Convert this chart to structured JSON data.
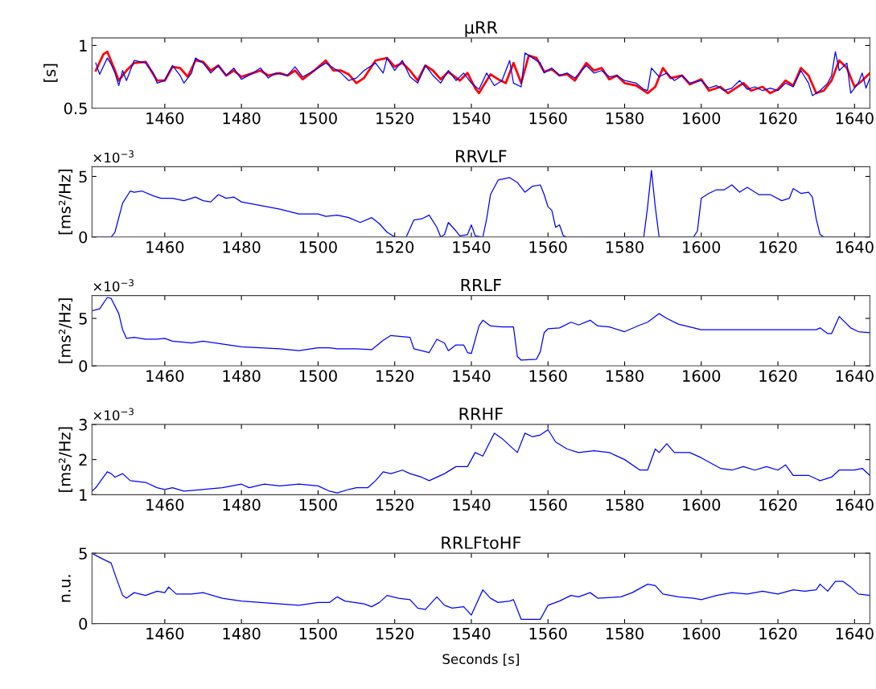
{
  "chart_data": [
    {
      "type": "line",
      "title": "μRR",
      "ylabel": "[s]",
      "xlim": [
        1441,
        1644
      ],
      "xticks": [
        1460,
        1480,
        1500,
        1520,
        1540,
        1560,
        1580,
        1600,
        1620,
        1640
      ],
      "ylim": [
        0.5,
        1.06
      ],
      "yticks": [
        0.5,
        1
      ],
      "grid": false,
      "series": [
        {
          "color": "#ff0000",
          "x": [
            1442,
            1444,
            1445,
            1447,
            1448,
            1450,
            1452,
            1455,
            1458,
            1460,
            1462,
            1464,
            1466,
            1468,
            1470,
            1472,
            1474,
            1476,
            1478,
            1480,
            1483,
            1485,
            1487,
            1490,
            1492,
            1494,
            1496,
            1499,
            1502,
            1504,
            1506,
            1508,
            1510,
            1512,
            1515,
            1518,
            1520,
            1522,
            1524,
            1526,
            1528,
            1530,
            1532,
            1534,
            1537,
            1539,
            1541,
            1542,
            1545,
            1547,
            1549,
            1551,
            1553,
            1555,
            1557,
            1559,
            1561,
            1563,
            1565,
            1567,
            1570,
            1572,
            1574,
            1576,
            1578,
            1580,
            1583,
            1586,
            1588,
            1590,
            1592,
            1595,
            1597,
            1600,
            1602,
            1605,
            1607,
            1609,
            1611,
            1613,
            1616,
            1618,
            1620,
            1622,
            1624,
            1626,
            1628,
            1630,
            1632,
            1634,
            1636,
            1638,
            1640,
            1642,
            1644
          ],
          "values": [
            0.8,
            0.93,
            0.95,
            0.8,
            0.72,
            0.8,
            0.86,
            0.87,
            0.72,
            0.72,
            0.83,
            0.82,
            0.75,
            0.88,
            0.87,
            0.8,
            0.84,
            0.76,
            0.8,
            0.75,
            0.78,
            0.8,
            0.76,
            0.78,
            0.76,
            0.8,
            0.73,
            0.8,
            0.88,
            0.8,
            0.8,
            0.77,
            0.7,
            0.74,
            0.88,
            0.9,
            0.83,
            0.86,
            0.8,
            0.72,
            0.84,
            0.8,
            0.73,
            0.79,
            0.72,
            0.78,
            0.66,
            0.62,
            0.77,
            0.73,
            0.7,
            0.86,
            0.7,
            0.92,
            0.9,
            0.79,
            0.81,
            0.76,
            0.77,
            0.72,
            0.86,
            0.8,
            0.82,
            0.73,
            0.76,
            0.7,
            0.68,
            0.62,
            0.67,
            0.82,
            0.74,
            0.76,
            0.69,
            0.73,
            0.64,
            0.67,
            0.62,
            0.66,
            0.7,
            0.64,
            0.67,
            0.62,
            0.65,
            0.72,
            0.68,
            0.82,
            0.76,
            0.62,
            0.64,
            0.72,
            0.88,
            0.82,
            0.67,
            0.72,
            0.78
          ]
        },
        {
          "color": "#0000ff",
          "x": [
            1442,
            1443,
            1445,
            1446,
            1447,
            1448,
            1449,
            1450,
            1452,
            1455,
            1457,
            1458,
            1460,
            1462,
            1464,
            1465,
            1467,
            1468,
            1470,
            1472,
            1474,
            1476,
            1478,
            1480,
            1483,
            1485,
            1487,
            1489,
            1492,
            1494,
            1496,
            1499,
            1502,
            1504,
            1506,
            1508,
            1510,
            1512,
            1515,
            1517,
            1518,
            1520,
            1522,
            1524,
            1526,
            1528,
            1530,
            1532,
            1534,
            1536,
            1538,
            1540,
            1542,
            1544,
            1546,
            1548,
            1550,
            1551,
            1553,
            1554,
            1556,
            1558,
            1559,
            1561,
            1563,
            1565,
            1567,
            1570,
            1572,
            1574,
            1576,
            1578,
            1580,
            1583,
            1585,
            1586,
            1587,
            1589,
            1591,
            1593,
            1595,
            1597,
            1600,
            1602,
            1604,
            1606,
            1608,
            1610,
            1612,
            1614,
            1616,
            1618,
            1620,
            1622,
            1624,
            1626,
            1628,
            1629,
            1631,
            1633,
            1634,
            1635,
            1636,
            1638,
            1639,
            1641,
            1642,
            1643,
            1644
          ],
          "values": [
            0.86,
            0.77,
            0.9,
            0.85,
            0.78,
            0.68,
            0.8,
            0.72,
            0.88,
            0.86,
            0.78,
            0.7,
            0.72,
            0.84,
            0.76,
            0.7,
            0.78,
            0.9,
            0.86,
            0.78,
            0.84,
            0.76,
            0.82,
            0.73,
            0.78,
            0.82,
            0.74,
            0.78,
            0.76,
            0.83,
            0.75,
            0.8,
            0.86,
            0.82,
            0.78,
            0.72,
            0.74,
            0.8,
            0.86,
            0.78,
            0.9,
            0.8,
            0.88,
            0.75,
            0.7,
            0.84,
            0.76,
            0.7,
            0.8,
            0.72,
            0.78,
            0.7,
            0.65,
            0.78,
            0.68,
            0.72,
            0.88,
            0.7,
            0.67,
            0.94,
            0.9,
            0.86,
            0.78,
            0.82,
            0.76,
            0.78,
            0.74,
            0.84,
            0.78,
            0.8,
            0.75,
            0.76,
            0.72,
            0.7,
            0.65,
            0.64,
            0.82,
            0.75,
            0.78,
            0.72,
            0.76,
            0.7,
            0.72,
            0.66,
            0.68,
            0.64,
            0.66,
            0.72,
            0.65,
            0.67,
            0.64,
            0.66,
            0.64,
            0.7,
            0.67,
            0.8,
            0.7,
            0.6,
            0.64,
            0.7,
            0.76,
            0.95,
            0.8,
            0.86,
            0.62,
            0.7,
            0.78,
            0.66,
            0.74
          ]
        }
      ]
    },
    {
      "type": "line",
      "title": "RRVLF",
      "ylabel": "[ms²/Hz]",
      "annotations": [
        "×10$^{−3}$"
      ],
      "xlim": [
        1441,
        1644
      ],
      "xticks": [
        1460,
        1480,
        1500,
        1520,
        1540,
        1560,
        1580,
        1600,
        1620,
        1640
      ],
      "ylim": [
        0,
        5.8
      ],
      "yticks": [
        0,
        5
      ],
      "grid": false,
      "series": [
        {
          "color": "#0000ff",
          "x": [
            1441,
            1446,
            1447,
            1449,
            1451,
            1452,
            1454,
            1457,
            1459,
            1462,
            1465,
            1468,
            1470,
            1472,
            1474,
            1476,
            1478,
            1480,
            1485,
            1490,
            1495,
            1500,
            1502,
            1505,
            1508,
            1511,
            1514,
            1516,
            1518,
            1520,
            1523,
            1525,
            1527,
            1529,
            1531,
            1532,
            1533,
            1534,
            1536,
            1537,
            1539,
            1540,
            1541,
            1543,
            1544,
            1545,
            1547,
            1550,
            1552,
            1554,
            1556,
            1558,
            1559,
            1560,
            1561,
            1562,
            1563,
            1564,
            1565,
            1585,
            1586,
            1587,
            1588,
            1589,
            1598,
            1599,
            1600,
            1602,
            1604,
            1606,
            1608,
            1610,
            1612,
            1615,
            1618,
            1621,
            1623,
            1624,
            1626,
            1628,
            1629,
            1630,
            1631,
            1632,
            1644
          ],
          "values": [
            0,
            0,
            0.4,
            2.8,
            3.8,
            3.7,
            3.8,
            3.4,
            3.2,
            3.2,
            3.0,
            3.3,
            3.0,
            2.9,
            3.5,
            3.2,
            3.3,
            2.9,
            2.6,
            2.3,
            1.9,
            1.9,
            1.7,
            1.8,
            1.6,
            1.2,
            1.6,
            1.1,
            0.4,
            0,
            0,
            1.4,
            1.5,
            1.8,
            0.8,
            0,
            0.2,
            1.2,
            0.5,
            0.1,
            0.2,
            1.0,
            0.1,
            0,
            1.5,
            3.5,
            4.7,
            4.9,
            4.5,
            3.7,
            4.2,
            4.3,
            3.5,
            2.5,
            2.2,
            0.8,
            1.0,
            0.1,
            0,
            0,
            2.5,
            5.5,
            2.5,
            0,
            0,
            0.5,
            3.2,
            3.6,
            3.9,
            3.9,
            4.3,
            3.7,
            4.1,
            3.5,
            3.5,
            3.0,
            3.2,
            4.0,
            3.6,
            3.7,
            3.3,
            1.5,
            0.2,
            0,
            0
          ]
        }
      ]
    },
    {
      "type": "line",
      "title": "RRLF",
      "ylabel": "[ms²/Hz]",
      "annotations": [
        "×10$^{−3}$"
      ],
      "xlim": [
        1441,
        1644
      ],
      "xticks": [
        1460,
        1480,
        1500,
        1520,
        1540,
        1560,
        1580,
        1600,
        1620,
        1640
      ],
      "ylim": [
        0,
        7.4
      ],
      "yticks": [
        0,
        5
      ],
      "grid": false,
      "series": [
        {
          "color": "#0000ff",
          "x": [
            1441,
            1443,
            1445,
            1446,
            1448,
            1449,
            1450,
            1452,
            1455,
            1458,
            1460,
            1462,
            1465,
            1467,
            1470,
            1475,
            1480,
            1485,
            1490,
            1495,
            1500,
            1503,
            1505,
            1510,
            1514,
            1517,
            1519,
            1524,
            1525,
            1527,
            1529,
            1531,
            1533,
            1534,
            1536,
            1538,
            1539,
            1540,
            1542,
            1543,
            1545,
            1548,
            1551,
            1552,
            1553,
            1557,
            1558,
            1559,
            1560,
            1563,
            1566,
            1568,
            1571,
            1573,
            1576,
            1580,
            1584,
            1586,
            1589,
            1591,
            1594,
            1597,
            1600,
            1630,
            1631,
            1633,
            1634,
            1636,
            1637,
            1639,
            1641,
            1644
          ],
          "values": [
            5.8,
            6.0,
            7.2,
            7.1,
            5.5,
            3.8,
            2.9,
            3.0,
            2.8,
            2.8,
            2.9,
            2.6,
            2.5,
            2.4,
            2.6,
            2.3,
            2.0,
            1.9,
            1.8,
            1.6,
            1.9,
            1.9,
            1.8,
            1.8,
            1.7,
            2.7,
            3.2,
            3.0,
            1.8,
            1.6,
            1.4,
            2.8,
            2.4,
            1.6,
            2.2,
            2.2,
            1.4,
            1.3,
            4.2,
            4.8,
            4.2,
            4.1,
            4.1,
            1.0,
            0.6,
            0.7,
            1.5,
            3.5,
            3.9,
            4.0,
            4.6,
            4.3,
            4.8,
            4.2,
            4.1,
            3.6,
            4.3,
            4.6,
            5.5,
            5.0,
            4.4,
            4.1,
            3.8,
            3.8,
            4.0,
            3.4,
            3.4,
            5.2,
            4.8,
            4.0,
            3.6,
            3.5
          ]
        }
      ]
    },
    {
      "type": "line",
      "title": "RRHF",
      "ylabel": "[ms²/Hz]",
      "annotations": [
        "×10$^{−3}$"
      ],
      "xlim": [
        1441,
        1644
      ],
      "xticks": [
        1460,
        1480,
        1500,
        1520,
        1540,
        1560,
        1580,
        1600,
        1620,
        1640
      ],
      "ylim": [
        1,
        3
      ],
      "yticks": [
        1,
        2,
        3
      ],
      "grid": false,
      "series": [
        {
          "color": "#0000ff",
          "x": [
            1441,
            1442,
            1444,
            1445,
            1446,
            1447,
            1449,
            1451,
            1455,
            1458,
            1460,
            1462,
            1465,
            1470,
            1475,
            1480,
            1482,
            1486,
            1490,
            1495,
            1500,
            1503,
            1505,
            1508,
            1510,
            1513,
            1515,
            1517,
            1519,
            1522,
            1524,
            1527,
            1529,
            1533,
            1536,
            1539,
            1541,
            1543,
            1546,
            1548,
            1550,
            1552,
            1554,
            1556,
            1558,
            1560,
            1562,
            1565,
            1568,
            1572,
            1576,
            1580,
            1584,
            1586,
            1588,
            1589,
            1591,
            1593,
            1597,
            1600,
            1605,
            1608,
            1611,
            1614,
            1617,
            1620,
            1622,
            1624,
            1628,
            1631,
            1634,
            1636,
            1640,
            1642,
            1644
          ],
          "values": [
            1.1,
            1.2,
            1.5,
            1.65,
            1.6,
            1.5,
            1.6,
            1.4,
            1.35,
            1.2,
            1.15,
            1.2,
            1.1,
            1.15,
            1.2,
            1.3,
            1.2,
            1.3,
            1.25,
            1.3,
            1.25,
            1.1,
            1.05,
            1.15,
            1.2,
            1.2,
            1.4,
            1.65,
            1.6,
            1.7,
            1.6,
            1.5,
            1.4,
            1.6,
            1.8,
            1.8,
            2.2,
            2.1,
            2.75,
            2.6,
            2.4,
            2.2,
            2.75,
            2.65,
            2.7,
            2.85,
            2.5,
            2.3,
            2.2,
            2.25,
            2.2,
            2.0,
            1.7,
            1.7,
            2.3,
            2.2,
            2.45,
            2.2,
            2.2,
            2.05,
            1.75,
            1.7,
            1.8,
            1.7,
            1.8,
            1.7,
            1.85,
            1.55,
            1.55,
            1.4,
            1.5,
            1.7,
            1.7,
            1.75,
            1.55
          ]
        }
      ]
    },
    {
      "type": "line",
      "title": "RRLFtoHF",
      "ylabel": "n.u.",
      "xlabel": "Seconds [s]",
      "xlim": [
        1441,
        1644
      ],
      "xticks": [
        1460,
        1480,
        1500,
        1520,
        1540,
        1560,
        1580,
        1600,
        1620,
        1640
      ],
      "ylim": [
        0,
        5
      ],
      "yticks": [
        0,
        5
      ],
      "grid": false,
      "series": [
        {
          "color": "#0000ff",
          "x": [
            1441,
            1443,
            1446,
            1447,
            1449,
            1450,
            1452,
            1455,
            1458,
            1460,
            1461,
            1463,
            1467,
            1470,
            1475,
            1480,
            1485,
            1490,
            1495,
            1500,
            1503,
            1505,
            1507,
            1512,
            1514,
            1516,
            1518,
            1521,
            1524,
            1526,
            1528,
            1531,
            1533,
            1535,
            1538,
            1540,
            1541,
            1543,
            1545,
            1547,
            1550,
            1551,
            1553,
            1555,
            1558,
            1560,
            1563,
            1566,
            1568,
            1571,
            1573,
            1579,
            1582,
            1586,
            1588,
            1590,
            1594,
            1598,
            1600,
            1604,
            1608,
            1612,
            1616,
            1620,
            1624,
            1627,
            1630,
            1631,
            1633,
            1635,
            1637,
            1639,
            1641,
            1644
          ],
          "values": [
            5.0,
            4.7,
            4.3,
            3.5,
            2.0,
            1.8,
            2.2,
            2.0,
            2.3,
            2.2,
            2.6,
            2.1,
            2.1,
            2.2,
            1.8,
            1.6,
            1.5,
            1.4,
            1.3,
            1.5,
            1.5,
            1.9,
            1.6,
            1.4,
            1.2,
            1.5,
            2.0,
            1.8,
            1.7,
            1.1,
            1.0,
            1.9,
            1.3,
            1.1,
            1.2,
            0.6,
            1.2,
            2.4,
            1.8,
            1.5,
            1.6,
            1.7,
            0.3,
            0.3,
            0.3,
            1.3,
            1.6,
            2.0,
            1.9,
            2.2,
            1.8,
            1.9,
            2.2,
            2.8,
            2.7,
            2.1,
            1.9,
            1.8,
            1.7,
            2.0,
            2.2,
            2.1,
            2.3,
            2.1,
            2.4,
            2.3,
            2.4,
            2.8,
            2.3,
            3.0,
            3.0,
            2.6,
            2.1,
            2.0
          ]
        }
      ]
    }
  ]
}
